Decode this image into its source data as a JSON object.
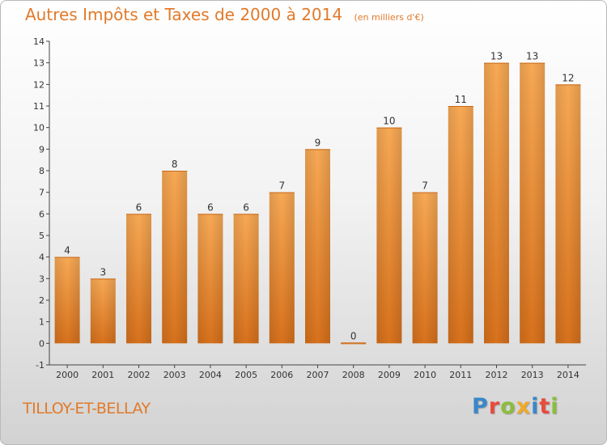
{
  "chart_data": {
    "type": "bar",
    "title": "Autres Impôts et Taxes de 2000 à 2014",
    "unit_note": "(en milliers d'€)",
    "categories": [
      "2000",
      "2001",
      "2002",
      "2003",
      "2004",
      "2005",
      "2006",
      "2007",
      "2008",
      "2009",
      "2010",
      "2011",
      "2012",
      "2013",
      "2014"
    ],
    "values": [
      4,
      3,
      6,
      8,
      6,
      6,
      7,
      9,
      0,
      10,
      7,
      11,
      13,
      13,
      12
    ],
    "ylim": [
      -1,
      14
    ],
    "yticks": [
      "-1",
      "0",
      "1",
      "2",
      "3",
      "4",
      "5",
      "6",
      "7",
      "8",
      "9",
      "10",
      "11",
      "12",
      "13",
      "14"
    ],
    "grid": false,
    "bar_color": "#f39a3e"
  },
  "footer": {
    "commune": "TILLOY-ET-BELLAY",
    "logo_letters": [
      {
        "ch": "P",
        "color": "#3b87c8"
      },
      {
        "ch": "r",
        "color": "#e94b3c"
      },
      {
        "ch": "o",
        "color": "#8bbd3c"
      },
      {
        "ch": "x",
        "color": "#f0a92b"
      },
      {
        "ch": "i",
        "color": "#3b87c8"
      },
      {
        "ch": "t",
        "color": "#e94b3c"
      },
      {
        "ch": "i",
        "color": "#8bbd3c"
      }
    ]
  }
}
